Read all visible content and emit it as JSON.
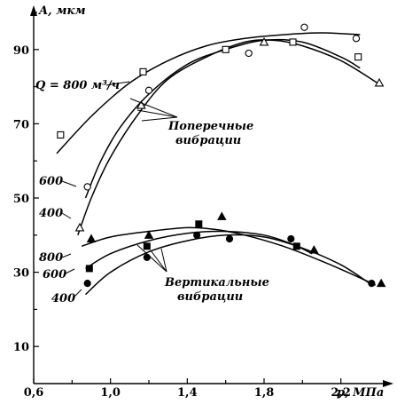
{
  "chart_data": {
    "type": "scatter",
    "title": "",
    "xlabel": "p, МПа",
    "ylabel": "A, мкм",
    "xlim": [
      0.6,
      2.4
    ],
    "ylim": [
      0,
      100
    ],
    "xticks": [
      0.6,
      1.0,
      1.4,
      1.8,
      2.2
    ],
    "xtick_labels": [
      "0,6",
      "1,0",
      "1,4",
      "1,8",
      "2,2"
    ],
    "yticks": [
      10,
      30,
      50,
      70,
      90
    ],
    "ytick_labels": [
      "10",
      "30",
      "50",
      "70",
      "90"
    ],
    "grid": false,
    "series": [
      {
        "name": "800",
        "group": "transverse",
        "marker": "square-hollow",
        "points": [
          [
            0.74,
            67
          ],
          [
            1.17,
            84
          ],
          [
            1.6,
            90
          ],
          [
            1.95,
            92
          ],
          [
            2.29,
            88
          ]
        ],
        "curve": [
          [
            0.72,
            62
          ],
          [
            0.9,
            72
          ],
          [
            1.1,
            81
          ],
          [
            1.3,
            87
          ],
          [
            1.5,
            91
          ],
          [
            1.7,
            93
          ],
          [
            1.9,
            94
          ],
          [
            2.1,
            94.5
          ],
          [
            2.3,
            94
          ]
        ]
      },
      {
        "name": "600",
        "group": "transverse",
        "marker": "circle-hollow",
        "points": [
          [
            0.88,
            53
          ],
          [
            1.2,
            79
          ],
          [
            1.72,
            89
          ],
          [
            2.01,
            96
          ],
          [
            2.28,
            93
          ]
        ],
        "curve": [
          [
            0.87,
            50
          ],
          [
            0.95,
            60
          ],
          [
            1.05,
            69
          ],
          [
            1.2,
            78
          ],
          [
            1.4,
            86
          ],
          [
            1.6,
            90
          ],
          [
            1.8,
            92.5
          ],
          [
            2.0,
            92
          ],
          [
            2.2,
            88
          ],
          [
            2.3,
            85
          ]
        ]
      },
      {
        "name": "400",
        "group": "transverse",
        "marker": "triangle-hollow",
        "points": [
          [
            0.84,
            42
          ],
          [
            1.16,
            75
          ],
          [
            1.8,
            92
          ],
          [
            2.4,
            81
          ]
        ],
        "curve": [
          [
            0.83,
            40
          ],
          [
            0.9,
            50
          ],
          [
            1.0,
            61
          ],
          [
            1.15,
            73
          ],
          [
            1.3,
            82
          ],
          [
            1.5,
            88
          ],
          [
            1.7,
            92
          ],
          [
            1.85,
            92.5
          ],
          [
            2.0,
            91
          ],
          [
            2.2,
            87
          ],
          [
            2.39,
            81
          ]
        ]
      },
      {
        "name": "800",
        "group": "vertical",
        "marker": "triangle-filled",
        "points": [
          [
            0.9,
            39
          ],
          [
            1.2,
            40
          ],
          [
            1.58,
            45
          ],
          [
            2.06,
            36
          ],
          [
            2.41,
            27
          ]
        ],
        "curve": [
          [
            0.85,
            37
          ],
          [
            1.0,
            39.5
          ],
          [
            1.2,
            41
          ],
          [
            1.4,
            42
          ],
          [
            1.55,
            41.5
          ],
          [
            1.7,
            40
          ],
          [
            1.9,
            37
          ],
          [
            2.1,
            33
          ],
          [
            2.3,
            28.5
          ],
          [
            2.38,
            26.5
          ]
        ]
      },
      {
        "name": "600",
        "group": "vertical",
        "marker": "square-filled",
        "points": [
          [
            0.89,
            31
          ],
          [
            1.19,
            37
          ],
          [
            1.46,
            43
          ],
          [
            1.97,
            37
          ]
        ],
        "curve": [
          [
            0.87,
            31
          ],
          [
            1.0,
            35
          ],
          [
            1.2,
            38.5
          ],
          [
            1.4,
            40.5
          ],
          [
            1.6,
            41
          ],
          [
            1.8,
            40
          ],
          [
            1.95,
            37.5
          ],
          [
            2.05,
            35
          ]
        ]
      },
      {
        "name": "400",
        "group": "vertical",
        "marker": "circle-filled",
        "points": [
          [
            0.88,
            27
          ],
          [
            1.19,
            34
          ],
          [
            1.45,
            40
          ],
          [
            1.62,
            39
          ],
          [
            1.94,
            39
          ],
          [
            2.36,
            27
          ]
        ],
        "curve": [
          [
            0.87,
            24
          ],
          [
            1.0,
            30
          ],
          [
            1.2,
            35.5
          ],
          [
            1.4,
            38.5
          ],
          [
            1.6,
            40
          ],
          [
            1.8,
            39.5
          ],
          [
            2.0,
            36.5
          ],
          [
            2.2,
            32
          ],
          [
            2.35,
            27
          ]
        ]
      }
    ],
    "annotations": {
      "q_label": "Q = 800 м³/ч",
      "label_600_top": "600",
      "label_400_top": "400",
      "label_800_bottom": "800",
      "label_600_bottom": "600",
      "label_400_bottom": "400",
      "transverse_line1": "Поперечные",
      "transverse_line2": "вибрации",
      "vertical_line1": "Вертикальные",
      "vertical_line2": "вибрации"
    }
  }
}
